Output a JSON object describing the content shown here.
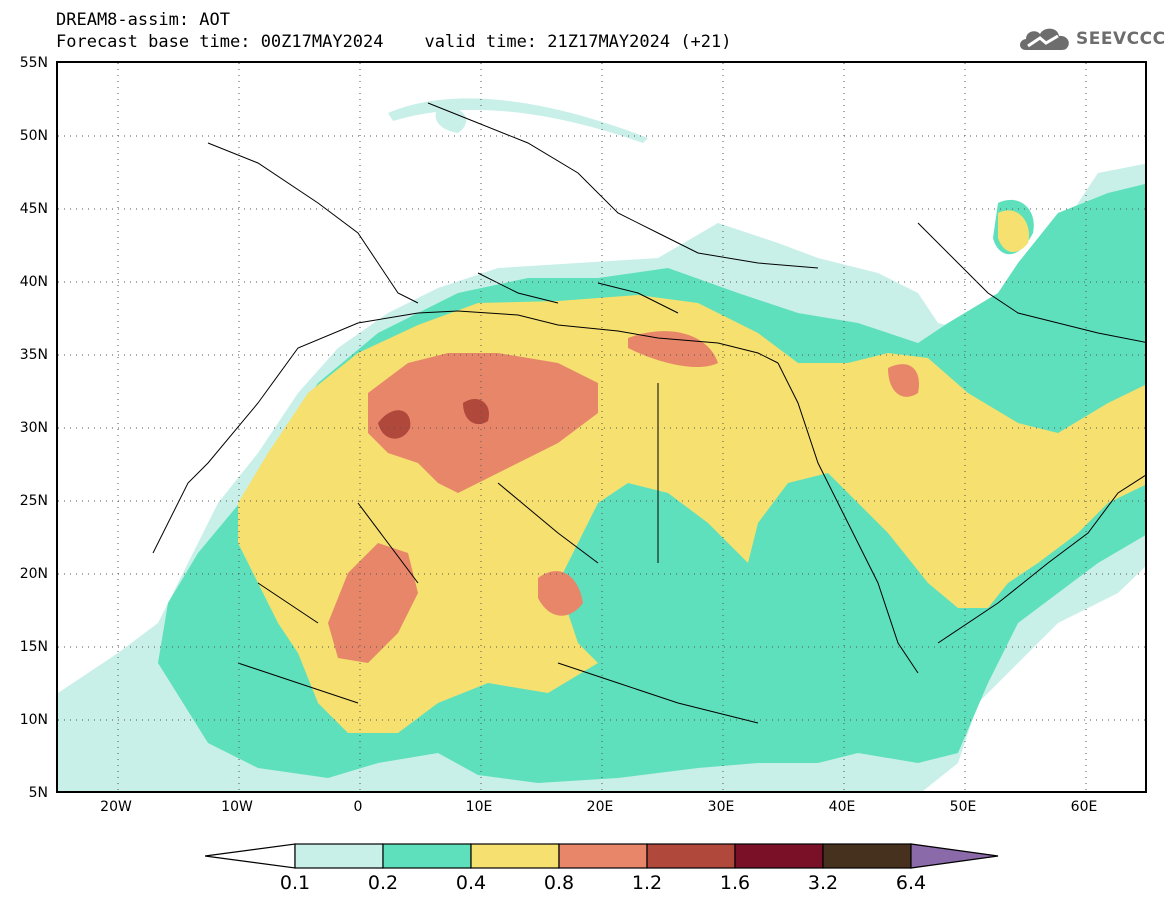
{
  "title": {
    "line1": "DREAM8-assim: AOT",
    "line2": "Forecast base time: 00Z17MAY2024    valid time: 21Z17MAY2024 (+21)"
  },
  "logo": {
    "text": "SEEVCCC",
    "icon": "cloud-icon"
  },
  "axes": {
    "lat_labels": [
      "55N",
      "50N",
      "45N",
      "40N",
      "35N",
      "30N",
      "25N",
      "20N",
      "15N",
      "10N",
      "5N"
    ],
    "lon_labels": [
      "20W",
      "10W",
      "0",
      "10E",
      "20E",
      "30E",
      "40E",
      "50E",
      "60E"
    ],
    "lat_range": [
      5,
      55
    ],
    "lon_range": [
      -25,
      65
    ],
    "grid": "dotted"
  },
  "colorbar": {
    "labels": [
      "0.1",
      "0.2",
      "0.4",
      "0.8",
      "1.2",
      "1.6",
      "3.2",
      "6.4"
    ],
    "colors": [
      "#ffffff",
      "#c8f0e8",
      "#5ee0bc",
      "#f5e070",
      "#e8866a",
      "#b0483c",
      "#7a1028",
      "#46301e",
      "#8a6aa8"
    ]
  },
  "field_colors": {
    "c1": "#c8f0e8",
    "c2": "#5ee0bc",
    "c3": "#f5e070",
    "c4": "#e8866a",
    "c5": "#b0483c"
  }
}
